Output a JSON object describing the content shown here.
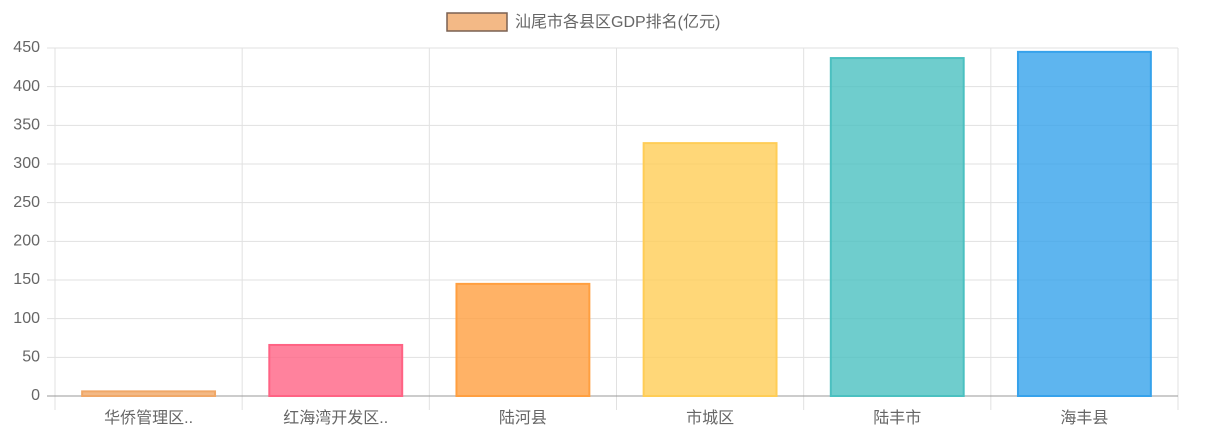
{
  "chart_data": {
    "type": "bar",
    "categories": [
      "华侨管理区..",
      "红海湾开发区..",
      "陆河县",
      "市城区",
      "陆丰市",
      "海丰县"
    ],
    "series": [
      {
        "name": "汕尾市各县区GDP排名(亿元)",
        "colors": [
          "#f0a868",
          "#ff6384",
          "#ff9f40",
          "#ffcd56",
          "#4bc0c0",
          "#36a2eb"
        ],
        "values": [
          6,
          66,
          145,
          327,
          437,
          445
        ]
      }
    ],
    "ylim": [
      0,
      450
    ],
    "yticks": [
      0,
      50,
      100,
      150,
      200,
      250,
      300,
      350,
      400,
      450
    ],
    "grid": true
  }
}
